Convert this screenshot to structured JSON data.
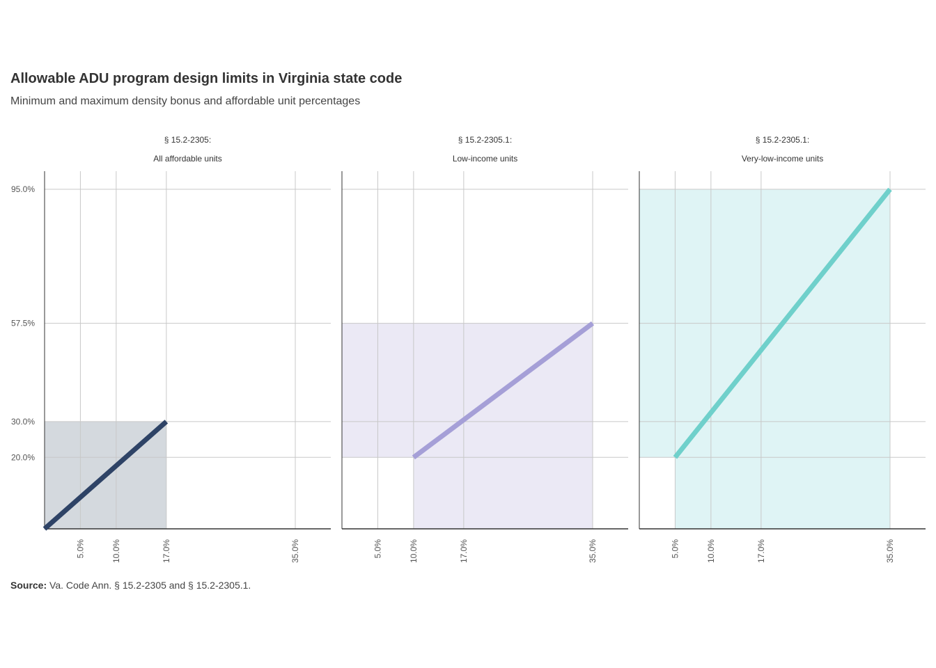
{
  "header": {
    "title": "Allowable ADU program design limits in Virginia state code",
    "subtitle": "Minimum and maximum density bonus and affordable unit percentages"
  },
  "footer": {
    "source_label": "Source:",
    "source_text": "Va. Code Ann. § 15.2-2305 and § 15.2-2305.1."
  },
  "chart_data": [
    {
      "type": "area",
      "title_lines": [
        "§ 15.2-2305:",
        "All affordable units"
      ],
      "color": "#2e4366",
      "fill": "#d4d9de",
      "x_ticks": [
        5,
        10,
        17,
        35
      ],
      "x_tick_labels": [
        "5.0%",
        "10.0%",
        "17.0%",
        "35.0%"
      ],
      "y_ticks": [
        20,
        30,
        57.5,
        95
      ],
      "y_tick_labels": [
        "20.0%",
        "30.0%",
        "57.5%",
        "95.0%"
      ],
      "xlim": [
        0,
        40
      ],
      "ylim": [
        0,
        100
      ],
      "line": {
        "x": [
          0,
          17
        ],
        "y": [
          0,
          30
        ]
      },
      "rect": {
        "x": [
          0,
          17
        ],
        "y": [
          0,
          30
        ]
      }
    },
    {
      "type": "area",
      "title_lines": [
        "§ 15.2-2305.1:",
        "Low-income units"
      ],
      "color": "#a59fd7",
      "fill": "#ebe9f5",
      "x_ticks": [
        5,
        10,
        17,
        35
      ],
      "x_tick_labels": [
        "5.0%",
        "10.0%",
        "17.0%",
        "35.0%"
      ],
      "y_ticks": [
        20,
        30,
        57.5,
        95
      ],
      "xlim": [
        0,
        40
      ],
      "ylim": [
        0,
        100
      ],
      "line": {
        "x": [
          10,
          35
        ],
        "y": [
          20,
          57.5
        ]
      },
      "rects": [
        {
          "x": [
            0,
            35
          ],
          "y": [
            20,
            57.5
          ]
        },
        {
          "x": [
            10,
            35
          ],
          "y": [
            0,
            20
          ]
        }
      ]
    },
    {
      "type": "area",
      "title_lines": [
        "§ 15.2-2305.1:",
        "Very-low-income units"
      ],
      "color": "#6fd0cb",
      "fill": "#dff4f5",
      "x_ticks": [
        5,
        10,
        17,
        35
      ],
      "x_tick_labels": [
        "5.0%",
        "10.0%",
        "17.0%",
        "35.0%"
      ],
      "y_ticks": [
        20,
        30,
        57.5,
        95
      ],
      "xlim": [
        0,
        40
      ],
      "ylim": [
        0,
        100
      ],
      "line": {
        "x": [
          5,
          35
        ],
        "y": [
          20,
          95
        ]
      },
      "rects": [
        {
          "x": [
            0,
            35
          ],
          "y": [
            20,
            95
          ]
        },
        {
          "x": [
            5,
            35
          ],
          "y": [
            0,
            20
          ]
        }
      ]
    }
  ]
}
